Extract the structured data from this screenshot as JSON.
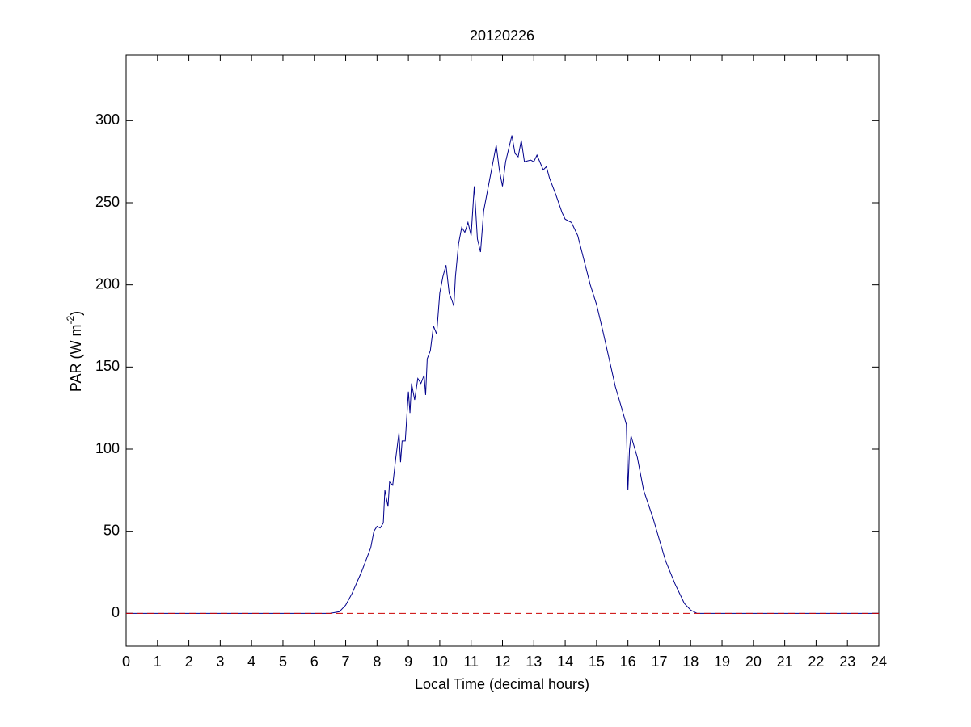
{
  "chart_data": {
    "type": "line",
    "title": "20120226",
    "xlabel": "Local Time (decimal hours)",
    "ylabel": [
      "PAR (W m",
      "-2",
      ")"
    ],
    "xlim": [
      0,
      24
    ],
    "xticks": [
      0,
      1,
      2,
      3,
      4,
      5,
      6,
      7,
      8,
      9,
      10,
      11,
      12,
      13,
      14,
      15,
      16,
      17,
      18,
      19,
      20,
      21,
      22,
      23,
      24
    ],
    "ylim": [
      -20,
      340
    ],
    "yticks": [
      0,
      50,
      100,
      150,
      200,
      250,
      300
    ],
    "series": [
      {
        "color": "#00008b",
        "dash": false,
        "x": [
          0,
          6.5,
          6.8,
          7,
          7.2,
          7.5,
          7.8,
          7.9,
          8,
          8.1,
          8.2,
          8.25,
          8.35,
          8.4,
          8.5,
          8.6,
          8.7,
          8.75,
          8.8,
          8.9,
          9,
          9.05,
          9.1,
          9.2,
          9.3,
          9.4,
          9.5,
          9.55,
          9.6,
          9.7,
          9.8,
          9.9,
          10,
          10.1,
          10.2,
          10.3,
          10.4,
          10.45,
          10.5,
          10.6,
          10.7,
          10.8,
          10.9,
          11,
          11.1,
          11.2,
          11.3,
          11.4,
          11.5,
          11.6,
          11.7,
          11.8,
          11.9,
          12,
          12.1,
          12.3,
          12.4,
          12.5,
          12.6,
          12.7,
          12.9,
          13,
          13.1,
          13.3,
          13.4,
          13.5,
          13.7,
          13.9,
          14,
          14.2,
          14.4,
          14.6,
          14.8,
          15,
          15.2,
          15.4,
          15.6,
          15.8,
          15.95,
          16,
          16.05,
          16.1,
          16.3,
          16.5,
          16.8,
          17,
          17.2,
          17.5,
          17.8,
          18,
          18.2,
          24
        ],
        "values": [
          0,
          0,
          1,
          5,
          12,
          25,
          40,
          50,
          53,
          52,
          55,
          75,
          65,
          80,
          78,
          95,
          110,
          92,
          105,
          105,
          135,
          122,
          140,
          130,
          143,
          140,
          145,
          133,
          155,
          160,
          175,
          170,
          195,
          205,
          212,
          195,
          190,
          187,
          205,
          225,
          235,
          232,
          238,
          230,
          260,
          228,
          220,
          245,
          255,
          265,
          275,
          285,
          270,
          260,
          275,
          291,
          280,
          278,
          288,
          275,
          276,
          275,
          279,
          270,
          272,
          265,
          255,
          244,
          240,
          238,
          230,
          215,
          200,
          188,
          172,
          155,
          138,
          125,
          115,
          75,
          100,
          108,
          95,
          75,
          58,
          45,
          32,
          18,
          6,
          2,
          0,
          0
        ]
      },
      {
        "color": "#cc0000",
        "dash": true,
        "x": [
          0,
          24
        ],
        "values": [
          0,
          0
        ]
      }
    ]
  }
}
